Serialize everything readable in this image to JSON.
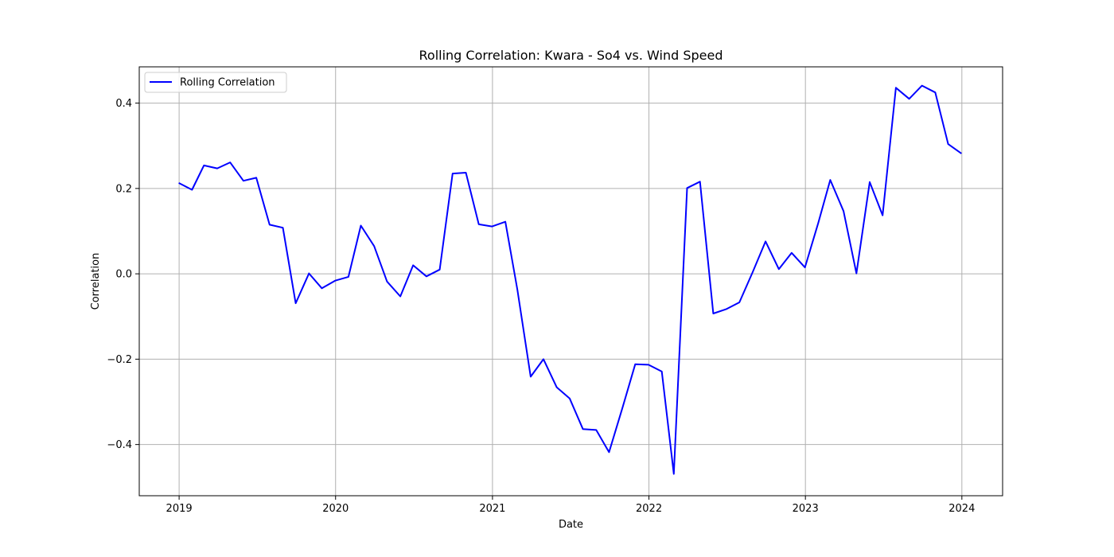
{
  "chart_data": {
    "type": "line",
    "title": "Rolling Correlation: Kwara - So4 vs. Wind Speed",
    "xlabel": "Date",
    "ylabel": "Correlation",
    "xlim": [
      "2018-09-30",
      "2024-04-05"
    ],
    "ylim": [
      -0.52,
      0.485
    ],
    "x_ticks": [
      "2019",
      "2020",
      "2021",
      "2022",
      "2023",
      "2024"
    ],
    "y_ticks": [
      -0.4,
      -0.2,
      0.0,
      0.2,
      0.4
    ],
    "y_tick_labels": [
      "−0.4",
      "−0.2",
      "0.0",
      "0.2",
      "0.4"
    ],
    "grid": true,
    "legend_position": "upper-left",
    "series": [
      {
        "name": "Rolling Correlation",
        "color": "#0000ff",
        "x": [
          "2018-12-31",
          "2019-01-31",
          "2019-02-28",
          "2019-03-31",
          "2019-04-30",
          "2019-05-31",
          "2019-06-30",
          "2019-07-31",
          "2019-08-31",
          "2019-09-30",
          "2019-10-31",
          "2019-11-30",
          "2019-12-31",
          "2020-01-31",
          "2020-02-29",
          "2020-03-31",
          "2020-04-30",
          "2020-05-31",
          "2020-06-30",
          "2020-07-31",
          "2020-08-31",
          "2020-09-30",
          "2020-10-31",
          "2020-11-30",
          "2020-12-31",
          "2021-01-31",
          "2021-02-28",
          "2021-03-31",
          "2021-04-30",
          "2021-05-31",
          "2021-06-30",
          "2021-07-31",
          "2021-08-31",
          "2021-09-30",
          "2021-10-31",
          "2021-11-30",
          "2021-12-31",
          "2022-01-31",
          "2022-02-28",
          "2022-03-31",
          "2022-04-30",
          "2022-05-31",
          "2022-06-30",
          "2022-07-31",
          "2022-08-31",
          "2022-09-30",
          "2022-10-31",
          "2022-11-30",
          "2022-12-31",
          "2023-01-31",
          "2023-02-28",
          "2023-03-31",
          "2023-04-30",
          "2023-05-31",
          "2023-06-30",
          "2023-07-31",
          "2023-08-31",
          "2023-09-30",
          "2023-10-31",
          "2023-11-30",
          "2023-12-31"
        ],
        "values": [
          0.213,
          0.197,
          0.254,
          0.247,
          0.261,
          0.218,
          0.225,
          0.115,
          0.108,
          -0.069,
          0.001,
          -0.034,
          -0.016,
          -0.007,
          0.113,
          0.065,
          -0.018,
          -0.053,
          0.02,
          -0.006,
          0.01,
          0.235,
          0.237,
          0.116,
          0.111,
          0.122,
          -0.037,
          -0.241,
          -0.2,
          -0.266,
          -0.292,
          -0.364,
          -0.366,
          -0.418,
          -0.315,
          -0.212,
          -0.213,
          -0.229,
          -0.469,
          0.201,
          0.216,
          -0.093,
          -0.083,
          -0.067,
          0.004,
          0.076,
          0.011,
          0.049,
          0.015,
          0.119,
          0.22,
          0.147,
          0.001,
          0.215,
          0.137,
          0.436,
          0.41,
          0.441,
          0.425,
          0.304,
          0.282
        ]
      }
    ]
  }
}
